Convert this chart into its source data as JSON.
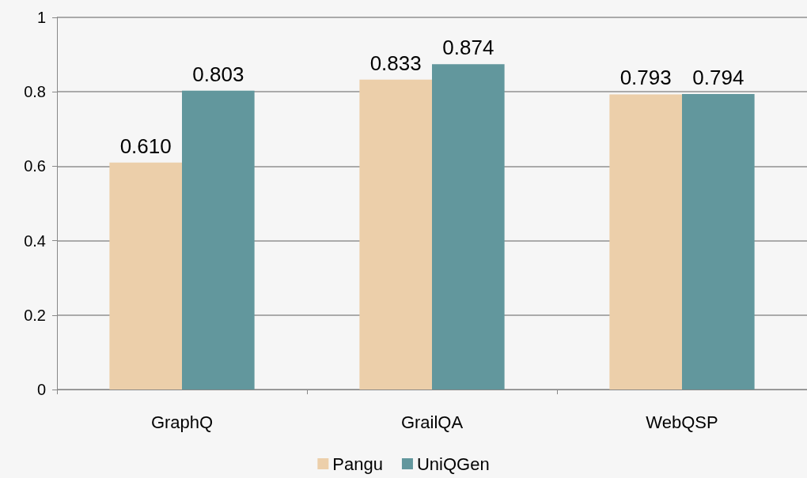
{
  "chart_data": {
    "type": "bar",
    "categories": [
      "GraphQ",
      "GrailQA",
      "WebQSP"
    ],
    "series": [
      {
        "name": "Pangu",
        "color": "#eccfaa",
        "values": [
          0.61,
          0.833,
          0.793
        ],
        "value_labels": [
          "0.610",
          "0.833",
          "0.793"
        ]
      },
      {
        "name": "UniQGen",
        "color": "#62979d",
        "values": [
          0.803,
          0.874,
          0.794
        ],
        "value_labels": [
          "0.803",
          "0.874",
          "0.794"
        ]
      }
    ],
    "ylim": [
      0,
      1
    ],
    "yticks": [
      0,
      0.2,
      0.4,
      0.6,
      0.8,
      1
    ],
    "grid": "y",
    "legend": "bottom"
  }
}
